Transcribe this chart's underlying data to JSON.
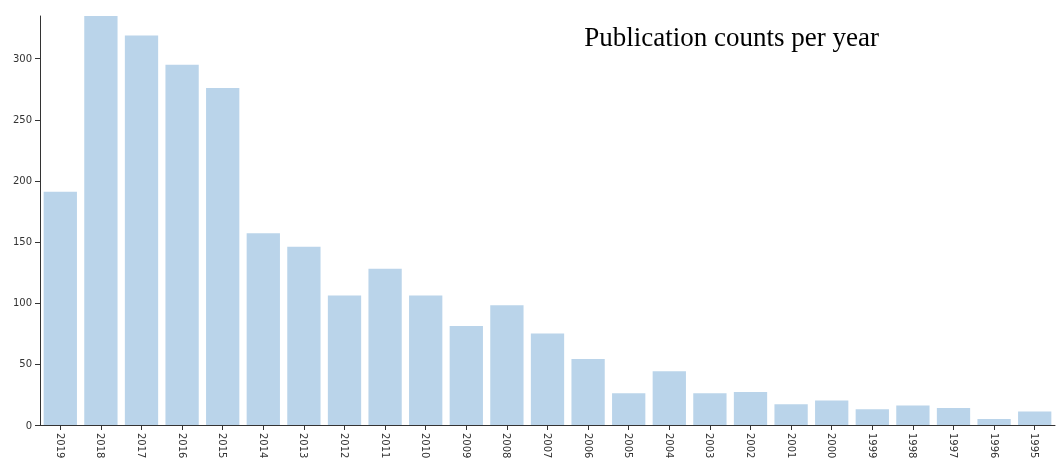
{
  "chart_data": {
    "type": "bar",
    "title": "Publication counts per year",
    "categories": [
      "2019",
      "2018",
      "2017",
      "2016",
      "2015",
      "2014",
      "2013",
      "2012",
      "2011",
      "2010",
      "2009",
      "2008",
      "2007",
      "2006",
      "2005",
      "2004",
      "2003",
      "2002",
      "2001",
      "2000",
      "1999",
      "1998",
      "1997",
      "1996",
      "1995"
    ],
    "values": [
      191,
      335,
      319,
      295,
      276,
      157,
      146,
      106,
      128,
      106,
      81,
      98,
      75,
      54,
      26,
      44,
      26,
      27,
      17,
      20,
      13,
      16,
      14,
      5,
      11
    ],
    "color": "#bad4ea",
    "ylim": [
      0,
      335
    ],
    "yticks": [
      0,
      50,
      100,
      150,
      200,
      250,
      300
    ],
    "grid": false
  }
}
